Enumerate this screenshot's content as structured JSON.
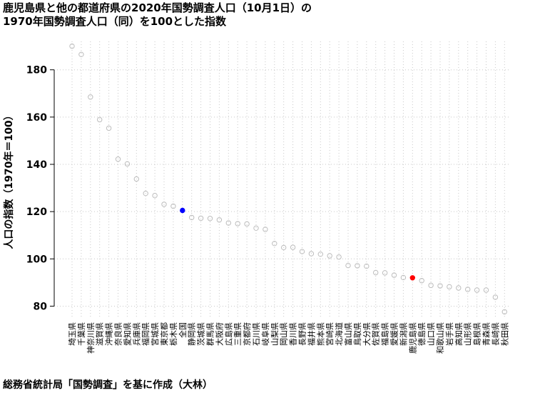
{
  "title": {
    "line1": "鹿児島県と他の都道府県の2020年国勢調査人口（10月1日）の",
    "line2": "1970年国勢調査人口（同）を100とした指数"
  },
  "source": "総務省統計局「国勢調査」を基に作成（大林）",
  "colors": {
    "default_point": "#bdbdbd",
    "national": "#0000ff",
    "kagoshima": "#ff0000",
    "grid": "#c8c8c8"
  },
  "chart_data": {
    "type": "scatter",
    "ylabel": "人口の指数（1970年＝100）",
    "xlabel": "",
    "ylim": [
      75,
      192
    ],
    "yticks": [
      80,
      100,
      120,
      140,
      160,
      180
    ],
    "grid": true,
    "highlights": {
      "全国": "national",
      "鹿児島県": "kagoshima"
    },
    "categories": [
      "埼玉県",
      "千葉県",
      "神奈川県",
      "滋賀県",
      "沖縄県",
      "奈良県",
      "愛知県",
      "兵庫県",
      "福岡県",
      "宮城県",
      "東京都",
      "栃木県",
      "全国",
      "静岡県",
      "茨城県",
      "群馬県",
      "大阪府",
      "広島県",
      "三重県",
      "京都府",
      "石川県",
      "岐阜県",
      "山梨県",
      "岡山県",
      "香川県",
      "長野県",
      "福井県",
      "熊本県",
      "宮崎県",
      "北海道",
      "富山県",
      "鳥取県",
      "大分県",
      "佐賀県",
      "福島県",
      "愛媛県",
      "新潟県",
      "鹿児島県",
      "徳島県",
      "山口県",
      "和歌山県",
      "岩手県",
      "高知県",
      "山形県",
      "島根県",
      "青森県",
      "長崎県",
      "秋田県"
    ],
    "values": [
      190.0,
      186.5,
      168.5,
      158.9,
      155.3,
      142.2,
      140.2,
      133.8,
      127.7,
      126.8,
      123.1,
      122.3,
      120.5,
      117.5,
      117.2,
      117.1,
      116.5,
      115.2,
      114.9,
      114.8,
      113.0,
      112.5,
      106.5,
      104.8,
      104.9,
      103.1,
      102.2,
      102.0,
      101.3,
      100.8,
      97.2,
      97.1,
      96.9,
      94.2,
      94.1,
      93.1,
      92.1,
      92.0,
      90.8,
      88.8,
      88.6,
      88.2,
      87.7,
      87.1,
      86.8,
      86.8,
      83.8,
      77.6
    ]
  }
}
